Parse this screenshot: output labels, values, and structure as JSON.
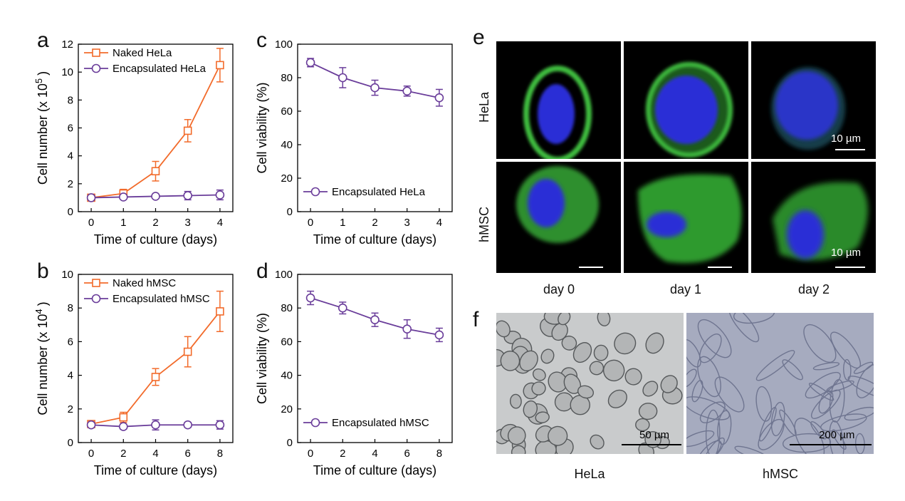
{
  "panel_letters": {
    "a": "a",
    "b": "b",
    "c": "c",
    "d": "d",
    "e": "e",
    "f": "f"
  },
  "chart_data": [
    {
      "id": "a",
      "type": "line",
      "xlabel": "Time of culture (days)",
      "ylabel": "Cell number (x 10",
      "ylabel_exp": "5",
      "ylabel_close": ")",
      "xlim": [
        -0.4,
        4.4
      ],
      "ylim": [
        0,
        12
      ],
      "xticks": [
        0,
        1,
        2,
        3,
        4
      ],
      "yticks": [
        0,
        2,
        4,
        6,
        8,
        10,
        12
      ],
      "legend_position": "top-left",
      "series": [
        {
          "name": "Naked HeLa",
          "marker": "square",
          "color": "#f26b2b",
          "x": [
            0,
            1,
            2,
            3,
            4
          ],
          "y": [
            1.0,
            1.3,
            2.9,
            5.8,
            10.5
          ],
          "err": [
            0.15,
            0.3,
            0.7,
            0.8,
            1.2
          ]
        },
        {
          "name": "Encapsulated HeLa",
          "marker": "circle",
          "color": "#6a3d9a",
          "x": [
            0,
            1,
            2,
            3,
            4
          ],
          "y": [
            1.0,
            1.05,
            1.1,
            1.15,
            1.2
          ],
          "err": [
            0.1,
            0.1,
            0.15,
            0.3,
            0.35
          ]
        }
      ]
    },
    {
      "id": "b",
      "type": "line",
      "xlabel": "Time of culture (days)",
      "ylabel": "Cell number (x 10",
      "ylabel_exp": "4",
      "ylabel_close": ")",
      "xlim": [
        -0.8,
        8.8
      ],
      "ylim": [
        0,
        10
      ],
      "xticks": [
        0,
        2,
        4,
        6,
        8
      ],
      "yticks": [
        0,
        2,
        4,
        6,
        8,
        10
      ],
      "legend_position": "top-left",
      "series": [
        {
          "name": "Naked hMSC",
          "marker": "square",
          "color": "#f26b2b",
          "x": [
            0,
            2,
            4,
            6,
            8
          ],
          "y": [
            1.1,
            1.5,
            3.9,
            5.4,
            7.8
          ],
          "err": [
            0.15,
            0.3,
            0.5,
            0.9,
            1.2
          ]
        },
        {
          "name": "Encapsulated hMSC",
          "marker": "circle",
          "color": "#6a3d9a",
          "x": [
            0,
            2,
            4,
            6,
            8
          ],
          "y": [
            1.05,
            0.95,
            1.05,
            1.05,
            1.05
          ],
          "err": [
            0.15,
            0.15,
            0.3,
            0.15,
            0.25
          ]
        }
      ]
    },
    {
      "id": "c",
      "type": "line",
      "xlabel": "Time of culture (days)",
      "ylabel": "Cell viability (%)",
      "xlim": [
        -0.4,
        4.4
      ],
      "ylim": [
        0,
        100
      ],
      "xticks": [
        0,
        1,
        2,
        3,
        4
      ],
      "yticks": [
        0,
        20,
        40,
        60,
        80,
        100
      ],
      "legend_position": "bottom-left",
      "series": [
        {
          "name": "Encapsulated HeLa",
          "marker": "circle",
          "color": "#6a3d9a",
          "x": [
            0,
            1,
            2,
            3,
            4
          ],
          "y": [
            89,
            80,
            74,
            72,
            68
          ],
          "err": [
            2.5,
            6,
            4.5,
            3,
            5
          ]
        }
      ]
    },
    {
      "id": "d",
      "type": "line",
      "xlabel": "Time of culture (days)",
      "ylabel": "Cell viability (%)",
      "xlim": [
        -0.8,
        8.8
      ],
      "ylim": [
        0,
        100
      ],
      "xticks": [
        0,
        2,
        4,
        6,
        8
      ],
      "yticks": [
        0,
        20,
        40,
        60,
        80,
        100
      ],
      "legend_position": "bottom-left",
      "series": [
        {
          "name": "Encapsulated hMSC",
          "marker": "circle",
          "color": "#6a3d9a",
          "x": [
            0,
            2,
            4,
            6,
            8
          ],
          "y": [
            86,
            80,
            73,
            67.5,
            64
          ],
          "err": [
            4,
            3.5,
            4,
            5.5,
            4
          ]
        }
      ]
    }
  ],
  "panel_e": {
    "row_labels": [
      "HeLa",
      "hMSC"
    ],
    "col_labels": [
      "day 0",
      "day 1",
      "day 2"
    ],
    "scale_label": "10 µm"
  },
  "panel_f": {
    "labels": [
      "HeLa",
      "hMSC"
    ],
    "scale_labels": [
      "50 µm",
      "200 µm"
    ]
  }
}
